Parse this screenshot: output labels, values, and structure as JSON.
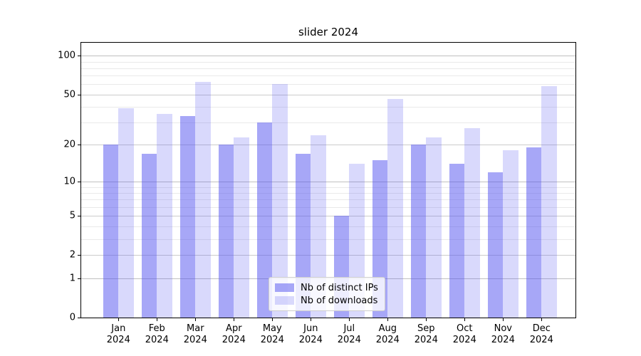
{
  "chart_data": {
    "type": "bar",
    "title": "slider 2024",
    "categories": [
      "Jan 2024",
      "Feb 2024",
      "Mar 2024",
      "Apr 2024",
      "May 2024",
      "Jun 2024",
      "Jul 2024",
      "Aug 2024",
      "Sep 2024",
      "Oct 2024",
      "Nov 2024",
      "Dec 2024"
    ],
    "series": [
      {
        "name": "Nb of distinct IPs",
        "values": [
          20,
          17,
          34,
          20,
          30,
          17,
          5,
          15,
          20,
          14,
          12,
          19
        ],
        "color": "rgba(80,80,240,0.5)",
        "color_hex": "#a7a7f7"
      },
      {
        "name": "Nb of downloads",
        "values": [
          39,
          35,
          63,
          23,
          60,
          24,
          14,
          46,
          23,
          27,
          18,
          58
        ],
        "color": "rgba(80,80,240,0.22)",
        "color_hex": "#d8d8fa"
      }
    ],
    "yscale": "log1p",
    "yticks": [
      0,
      1,
      2,
      5,
      10,
      20,
      50,
      100
    ],
    "minor_yticks": [
      3,
      4,
      6,
      7,
      8,
      9,
      30,
      40,
      60,
      70,
      80,
      90
    ],
    "decade_ticks": [
      1,
      10,
      100
    ],
    "ylim": [
      0,
      130
    ],
    "grid": true,
    "legend_position": "lower center"
  }
}
